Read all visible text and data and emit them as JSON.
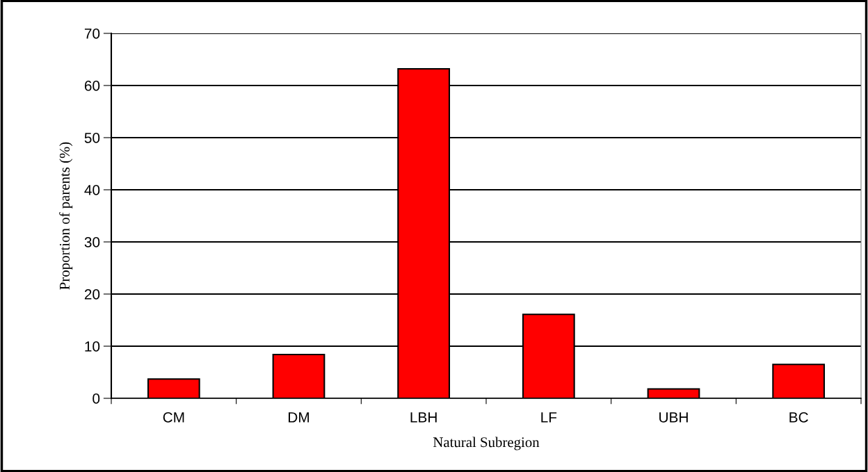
{
  "chart_data": {
    "type": "bar",
    "xlabel": "Natural Subregion",
    "ylabel": "Proportion of parents (%)",
    "categories": [
      "CM",
      "DM",
      "LBH",
      "LF",
      "UBH",
      "BC"
    ],
    "values": [
      3.7,
      8.4,
      63.2,
      16.1,
      1.8,
      6.5
    ],
    "color": "#ff0000",
    "ylim": [
      0,
      70
    ],
    "yticks": [
      0,
      10,
      20,
      30,
      40,
      50,
      60,
      70
    ],
    "grid": "y"
  }
}
